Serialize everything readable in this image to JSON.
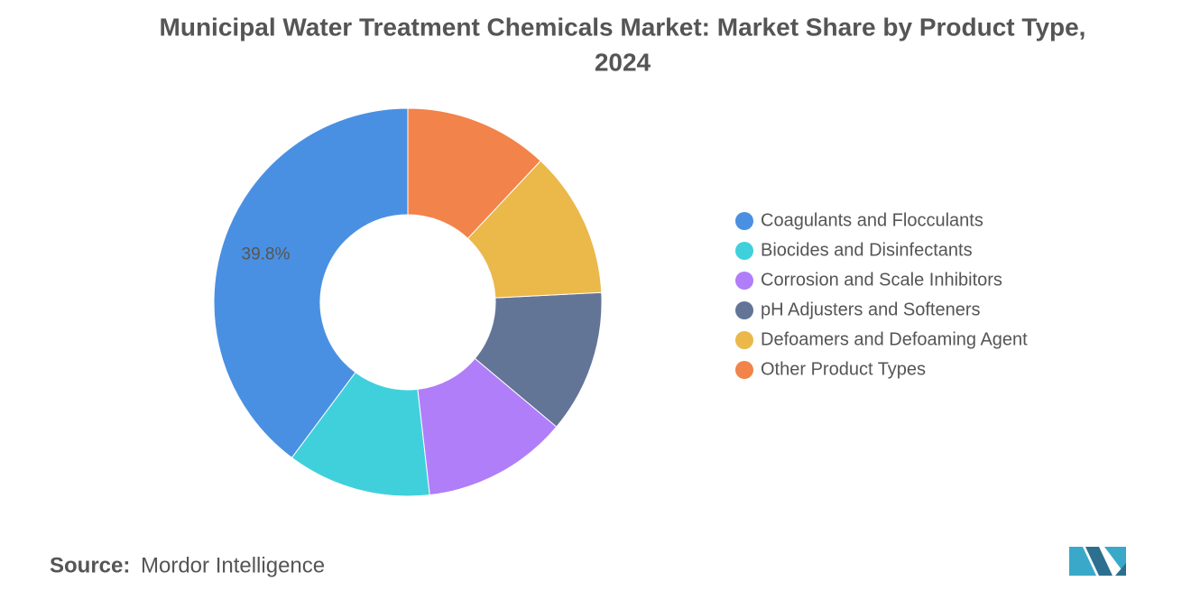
{
  "chart_data": {
    "type": "donut",
    "title": "Municipal Water Treatment Chemicals Market: Market Share by Product Type,",
    "subtitle": "2024",
    "categories": [
      "Coagulants and Flocculants",
      "Biocides and Disinfectants",
      "Corrosion and Scale Inhibitors",
      "pH Adjusters and Softeners",
      "Defoamers and Defoaming Agent",
      "Other Product Types"
    ],
    "values": [
      39.8,
      12.0,
      12.1,
      11.9,
      12.2,
      12.0
    ],
    "value_labels": [
      "39.8%",
      null,
      null,
      null,
      null,
      null
    ],
    "colors": [
      "#4a90e2",
      "#40d0dc",
      "#b07ef8",
      "#637596",
      "#ebb84a",
      "#f2834a"
    ],
    "legend": "right",
    "source_label": "Source:",
    "source": "Mordor Intelligence"
  }
}
